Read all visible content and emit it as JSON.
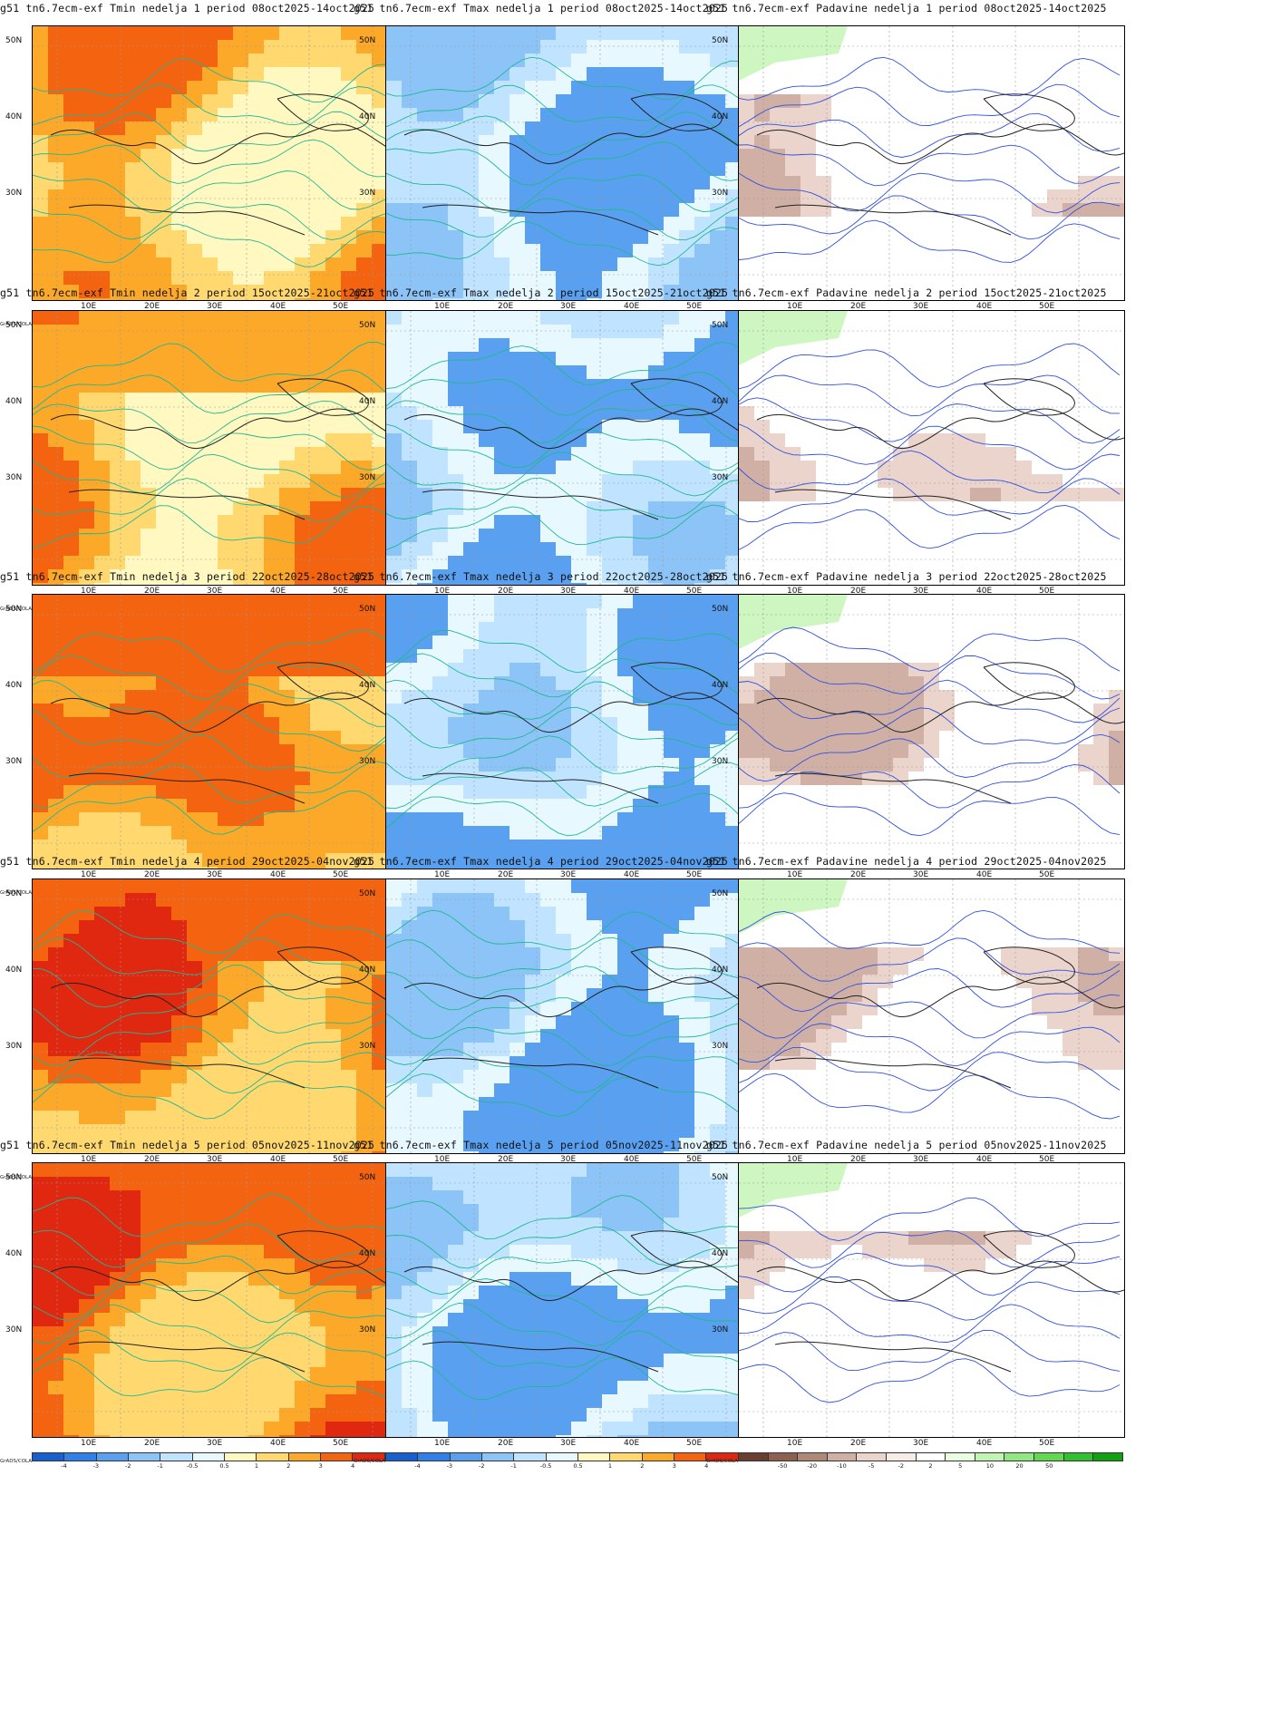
{
  "meta_labels": {
    "credit": "GrADS/COLA"
  },
  "axes": {
    "lat_labels": [
      "50N",
      "40N",
      "30N"
    ],
    "lon_labels": [
      "10E",
      "20E",
      "30E",
      "40E",
      "50E"
    ]
  },
  "colorbars": {
    "temperature": {
      "colors": [
        "#1860d0",
        "#2f80e8",
        "#5aa0f0",
        "#8cc4f8",
        "#c0e4ff",
        "#e8f8ff",
        "#fff8c0",
        "#ffd870",
        "#fca828",
        "#f46410",
        "#e02810",
        "#a80808"
      ],
      "ticks": [
        "-4",
        "-3",
        "-2",
        "-1",
        "-0.5",
        "0.5",
        "1",
        "2",
        "3",
        "4"
      ]
    },
    "precipitation": {
      "colors": [
        "#6a3e30",
        "#8e6050",
        "#b08878",
        "#d0b0a4",
        "#ead4cc",
        "#f8ece6",
        "#ffffff",
        "#e8ffe0",
        "#c0f4b0",
        "#90e880",
        "#60d850",
        "#30c030",
        "#10a010"
      ],
      "ticks": [
        "-50",
        "-20",
        "-10",
        "-5",
        "-2",
        "2",
        "5",
        "10",
        "20",
        "50"
      ]
    }
  },
  "panels": [
    {
      "title": "g51 tn6.7ecm-exf Tmin nedelja 1 period 08oct2025-14oct2025",
      "variable": "Tmin",
      "colorbar": "temperature"
    },
    {
      "title": "g51 tn6.7ecm-exf Tmax nedelja 1 period 08oct2025-14oct2025",
      "variable": "Tmax",
      "colorbar": "temperature"
    },
    {
      "title": "g51 tn6.7ecm-exf Padavine nedelja 1 period 08oct2025-14oct2025",
      "variable": "Padavine",
      "colorbar": "precipitation"
    },
    {
      "title": "g51 tn6.7ecm-exf Tmin nedelja 2 period 15oct2025-21oct2025",
      "variable": "Tmin",
      "colorbar": "temperature"
    },
    {
      "title": "g51 tn6.7ecm-exf Tmax nedelja 2 period 15oct2025-21oct2025",
      "variable": "Tmax",
      "colorbar": "temperature"
    },
    {
      "title": "g51 tn6.7ecm-exf Padavine nedelja 2 period 15oct2025-21oct2025",
      "variable": "Padavine",
      "colorbar": "precipitation"
    },
    {
      "title": "g51 tn6.7ecm-exf Tmin nedelja 3 period 22oct2025-28oct2025",
      "variable": "Tmin",
      "colorbar": "temperature"
    },
    {
      "title": "g51 tn6.7ecm-exf Tmax nedelja 3 period 22oct2025-28oct2025",
      "variable": "Tmax",
      "colorbar": "temperature"
    },
    {
      "title": "g51 tn6.7ecm-exf Padavine nedelja 3 period 22oct2025-28oct2025",
      "variable": "Padavine",
      "colorbar": "precipitation"
    },
    {
      "title": "g51 tn6.7ecm-exf Tmin nedelja 4 period 29oct2025-04nov2025",
      "variable": "Tmin",
      "colorbar": "temperature"
    },
    {
      "title": "g51 tn6.7ecm-exf Tmax nedelja 4 period 29oct2025-04nov2025",
      "variable": "Tmax",
      "colorbar": "temperature"
    },
    {
      "title": "g51 tn6.7ecm-exf Padavine nedelja 4 period 29oct2025-04nov2025",
      "variable": "Padavine",
      "colorbar": "precipitation"
    },
    {
      "title": "g51 tn6.7ecm-exf Tmin nedelja 5 period 05nov2025-11nov2025",
      "variable": "Tmin",
      "colorbar": "temperature"
    },
    {
      "title": "g51 tn6.7ecm-exf Tmax nedelja 5 period 05nov2025-11nov2025",
      "variable": "Tmax",
      "colorbar": "temperature"
    },
    {
      "title": "g51 tn6.7ecm-exf Padavine nedelja 5 period 05nov2025-11nov2025",
      "variable": "Padavine",
      "colorbar": "precipitation"
    }
  ]
}
